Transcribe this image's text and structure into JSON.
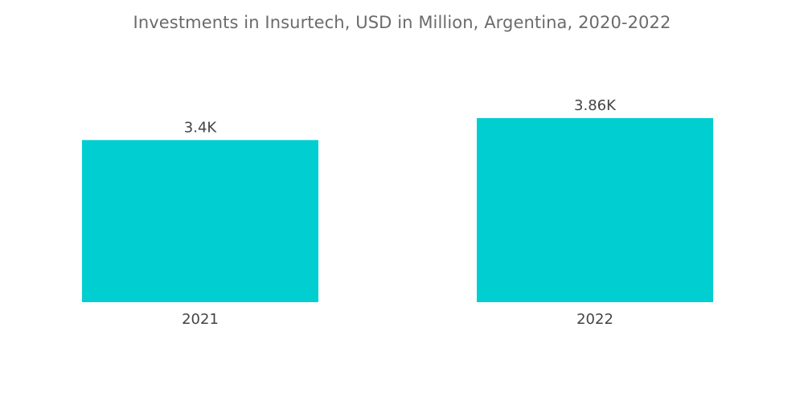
{
  "chart_data": {
    "type": "bar",
    "title": "Investments in Insurtech, USD in Million, Argentina, 2020-2022",
    "categories": [
      "2021",
      "2022"
    ],
    "values": [
      3400,
      3860
    ],
    "data_labels": [
      "3.4K",
      "3.86K"
    ],
    "xlabel": "",
    "ylabel": "",
    "ylim": [
      0,
      3860
    ],
    "grid": false,
    "legend": "none",
    "bar_color": "#00CED1"
  }
}
